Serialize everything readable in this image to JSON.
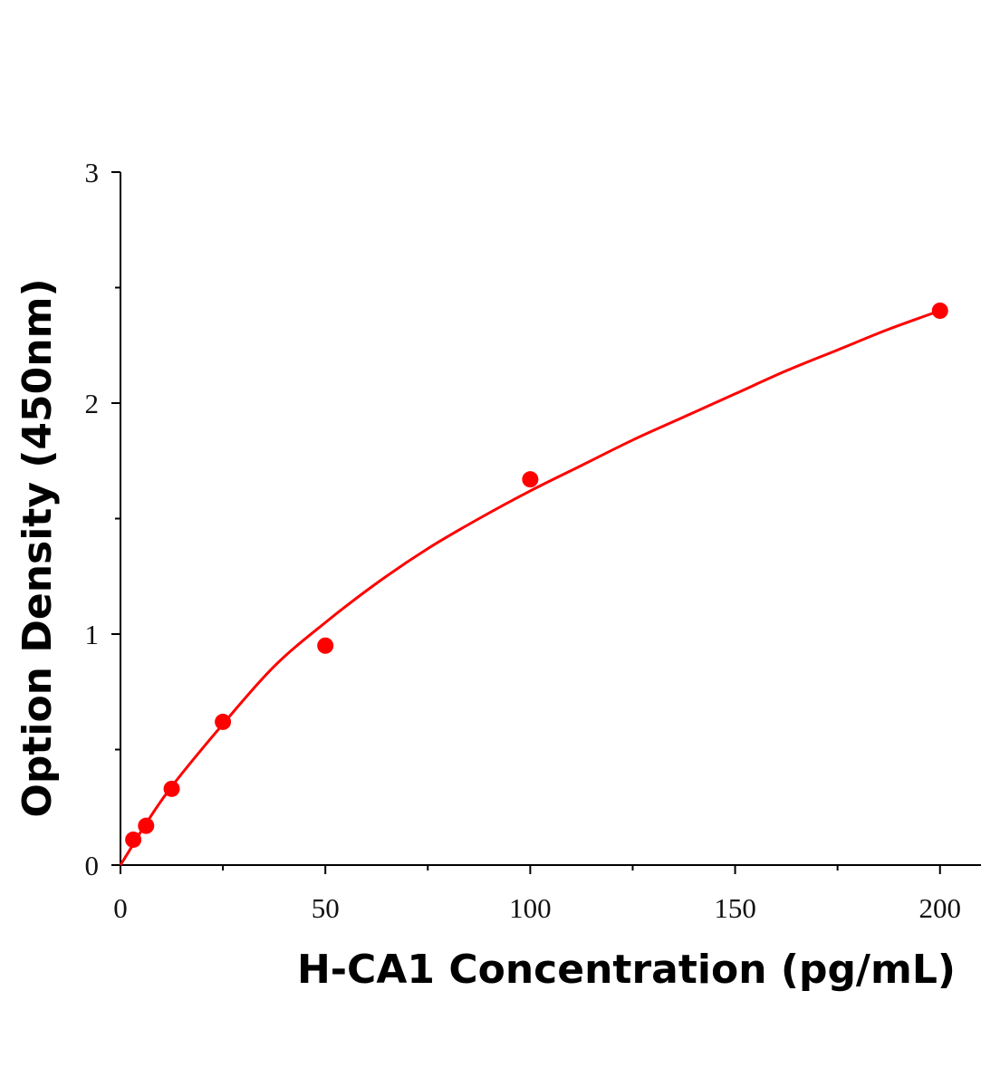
{
  "chart_data": {
    "type": "scatter",
    "title": "",
    "xlabel": "H-CA1 Concentration (pg/mL)",
    "ylabel": "Option Density (450nm)",
    "xlim": [
      0,
      210
    ],
    "ylim": [
      0,
      3
    ],
    "x_ticks": [
      0,
      50,
      100,
      150,
      200
    ],
    "y_ticks": [
      0,
      1,
      2,
      3
    ],
    "x_tick_labels": [
      "0",
      "50",
      "100",
      "150",
      "200"
    ],
    "y_tick_labels": [
      "0",
      "1",
      "2",
      "3"
    ],
    "grid": false,
    "legend": "none",
    "series": [
      {
        "x": [
          3.125,
          6.25,
          12.5,
          25,
          50,
          100,
          200
        ],
        "y": [
          0.11,
          0.17,
          0.33,
          0.62,
          0.95,
          1.67,
          2.4
        ],
        "color": "#ff0000",
        "marker": "circle"
      }
    ],
    "fit_curve": {
      "type": "four-parameter logistic",
      "color": "#ff0000",
      "x": [
        0,
        3.125,
        6.25,
        12.5,
        25,
        37.5,
        50,
        62.5,
        75,
        87.5,
        100,
        112.5,
        125,
        137.5,
        150,
        162.5,
        175,
        187.5,
        200
      ],
      "y": [
        0.0,
        0.09,
        0.18,
        0.34,
        0.61,
        0.86,
        1.05,
        1.22,
        1.37,
        1.5,
        1.62,
        1.73,
        1.84,
        1.94,
        2.04,
        2.14,
        2.23,
        2.32,
        2.4
      ]
    }
  }
}
